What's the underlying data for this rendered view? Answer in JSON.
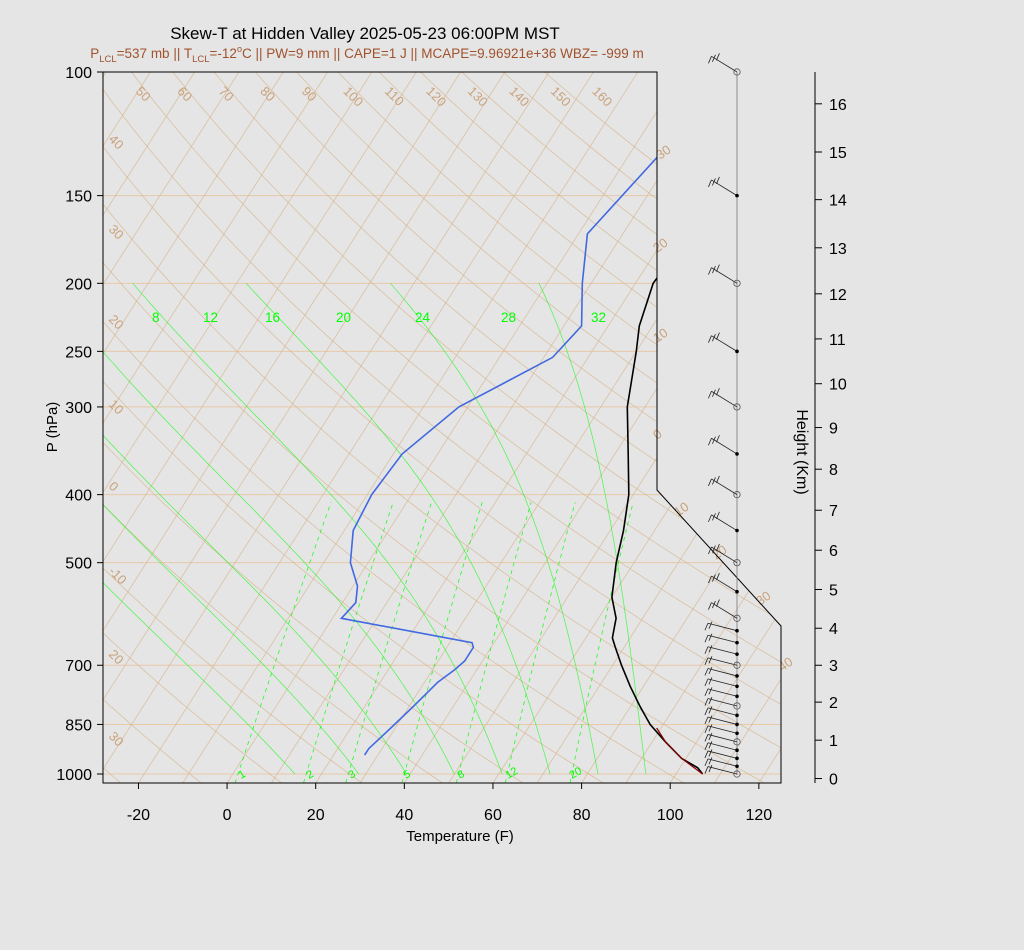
{
  "chart_data": {
    "type": "line",
    "title": "Skew-T at Hidden Valley 2025-05-23 06:00PM MST",
    "subtitle_parts": {
      "p_lcl_sym": "P",
      "p_lcl_sub": "LCL",
      "p_lcl_val": "=537 mb || ",
      "t_lcl_sym": "T",
      "t_lcl_sub": "LCL",
      "t_lcl_val": "=-12",
      "deg_sup": "o",
      "rest": "C || PW=9 mm || CAPE=1 J || MCAPE=9.96921e+36 WBZ= -999 m"
    },
    "xlabel": "Temperature (F)",
    "ylabel": "P (hPa)",
    "y2label": "Height (Km)",
    "x_ticks": [
      "-20",
      "0",
      "20",
      "40",
      "60",
      "80",
      "100",
      "120"
    ],
    "x_tick_values": [
      -20,
      0,
      20,
      40,
      60,
      80,
      100,
      120
    ],
    "xlim": [
      -28,
      125
    ],
    "pressure_ticks": [
      "100",
      "150",
      "200",
      "250",
      "300",
      "400",
      "500",
      "700",
      "850",
      "1000"
    ],
    "pressure_values": [
      100,
      150,
      200,
      250,
      300,
      400,
      500,
      700,
      850,
      1000
    ],
    "ylim": [
      1030,
      100
    ],
    "ylog": true,
    "height_ticks": [
      "0",
      "1",
      "2",
      "3",
      "4",
      "5",
      "6",
      "7",
      "8",
      "9",
      "10",
      "11",
      "12",
      "13",
      "14",
      "15",
      "16"
    ],
    "height_pressures": [
      1015,
      895,
      790,
      700,
      620,
      546,
      480,
      421,
      368,
      321,
      278,
      240,
      207,
      178,
      152,
      130,
      111
    ],
    "isotherm_labels_left": [
      "50",
      "60",
      "70",
      "80",
      "90",
      "100",
      "110",
      "120",
      "130",
      "140",
      "150",
      "160"
    ],
    "isotherm_labels_right": [
      "30",
      "20",
      "10",
      "0",
      "10",
      "20",
      "30",
      "40"
    ],
    "isotherm_labels_side": [
      "40",
      "30",
      "20",
      "10",
      "0",
      "-10",
      "20",
      "30"
    ],
    "mixing_labels_top": [
      "8",
      "12",
      "16",
      "20",
      "24",
      "28",
      "32"
    ],
    "mixing_labels_bottom": [
      "1",
      "2",
      "3",
      "5",
      "8",
      "12",
      "20"
    ],
    "colors": {
      "background": "#e5e5e5",
      "plot_bg": "#e5e5e5",
      "temperature": "#000000",
      "dewpoint": "#4169e1",
      "isobar": "#e8c9a8",
      "adiabat": "#d6b48c",
      "mixing": "#00ff00",
      "subtitle": "#a0522d",
      "parcel": "#8b0000"
    },
    "series": [
      {
        "name": "Temperature",
        "p": [
          1000,
          980,
          950,
          900,
          850,
          800,
          750,
          700,
          660,
          640,
          620,
          600,
          560,
          500,
          450,
          400,
          350,
          300,
          250,
          230,
          200,
          170,
          130,
          100
        ],
        "x": [
          106,
          104,
          99,
          93,
          87,
          82,
          77,
          72,
          68,
          66,
          65,
          64,
          60,
          56,
          53,
          49,
          43,
          36,
          30,
          27,
          24,
          25,
          34,
          47
        ]
      },
      {
        "name": "Dewpoint",
        "p": [
          940,
          920,
          860,
          800,
          740,
          710,
          690,
          660,
          650,
          600,
          570,
          540,
          500,
          450,
          400,
          350,
          300,
          255,
          230,
          200,
          170,
          130,
          100
        ],
        "x": [
          27,
          27,
          29,
          31,
          33,
          35,
          36,
          36,
          35,
          2,
          3,
          1,
          -4,
          -8,
          -9,
          -8,
          -2,
          12,
          14,
          8,
          2,
          7,
          23
        ]
      }
    ]
  }
}
